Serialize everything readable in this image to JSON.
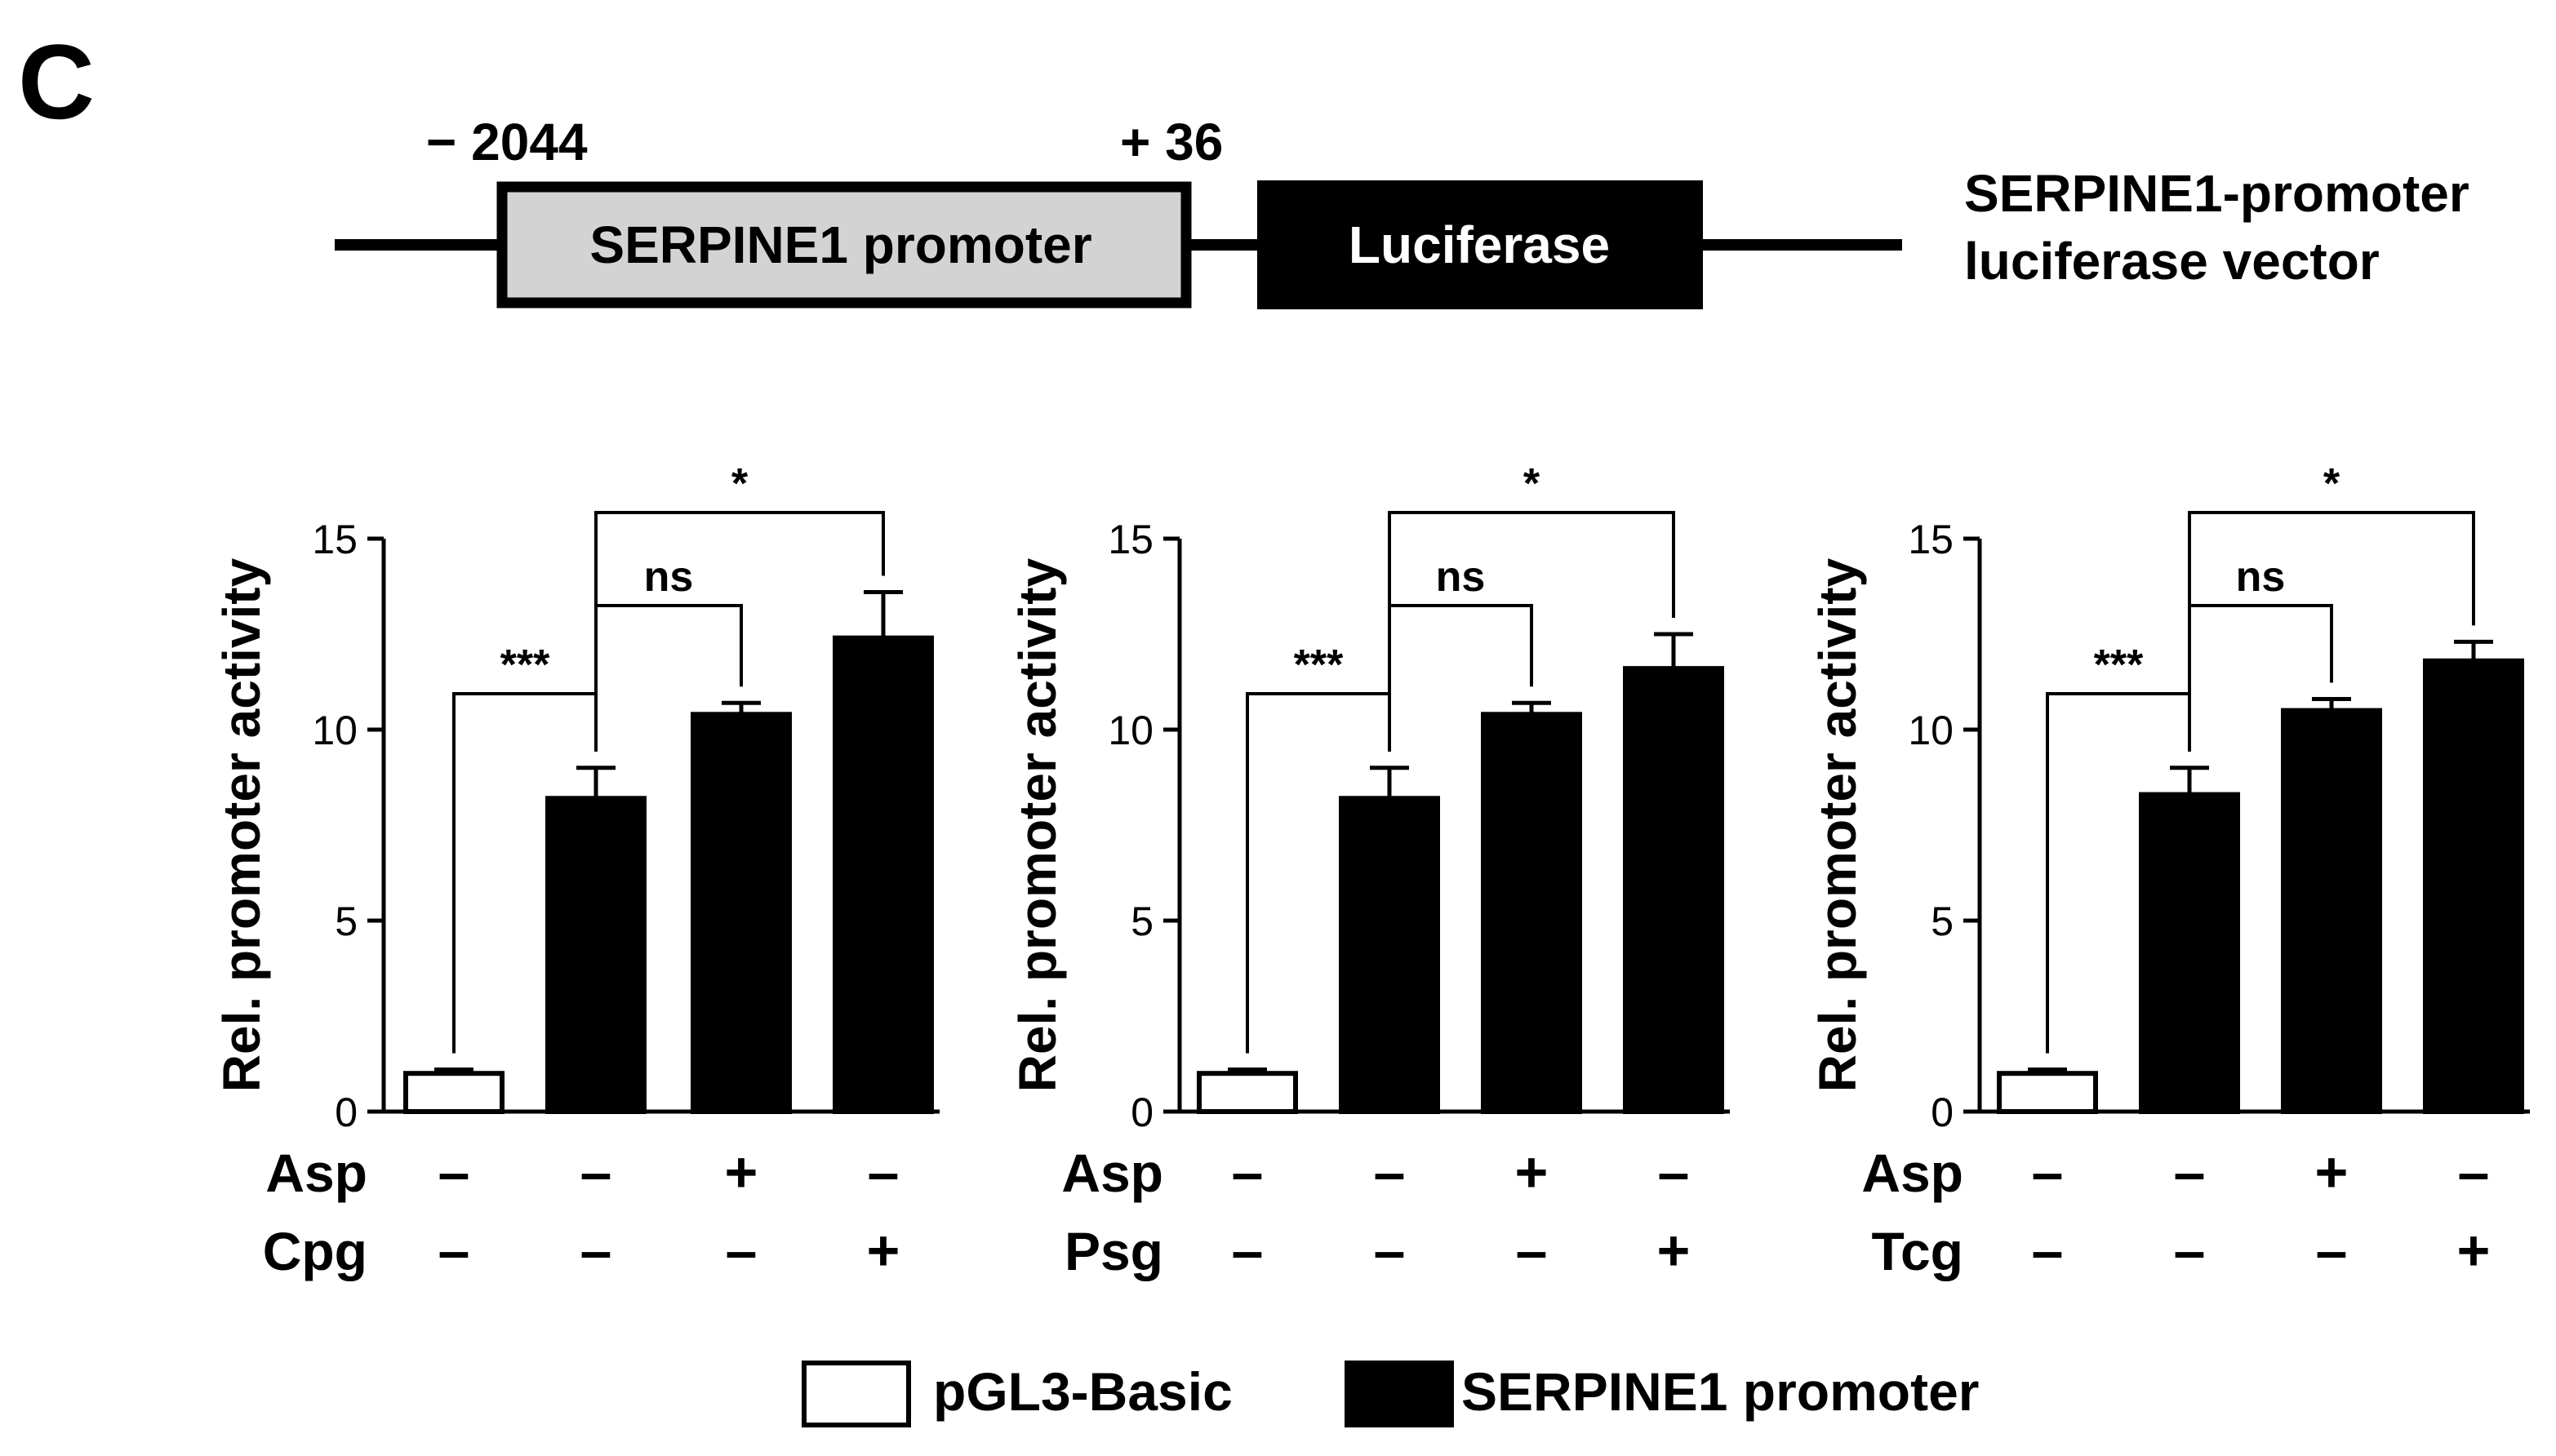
{
  "panel_label": "C",
  "construct": {
    "start_label": "− 2044",
    "end_label": "+ 36",
    "promoter_label": "SERPINE1 promoter",
    "reporter_label": "Luciferase",
    "caption_line1": "SERPINE1-promoter",
    "caption_line2": "luciferase vector",
    "promoter_fill": "#d3d3d3",
    "reporter_fill": "#000000"
  },
  "legend": {
    "items": [
      {
        "label": "pGL3-Basic",
        "color": "#ffffff"
      },
      {
        "label": "SERPINE1 promoter",
        "color": "#000000"
      }
    ]
  },
  "chart_data": [
    {
      "type": "bar",
      "ylabel": "Rel. promoter activity",
      "ylim": [
        0,
        15
      ],
      "yticks": [
        0,
        5,
        10,
        15
      ],
      "values": [
        1.0,
        8.2,
        10.4,
        12.4
      ],
      "errors": [
        0.1,
        0.8,
        0.3,
        1.2
      ],
      "colors": [
        "#ffffff",
        "#000000",
        "#000000",
        "#000000"
      ],
      "conditions": [
        {
          "label": "Asp",
          "signs": [
            "–",
            "–",
            "+",
            "–"
          ]
        },
        {
          "label": "Cpg",
          "signs": [
            "–",
            "–",
            "–",
            "+"
          ]
        }
      ],
      "comparisons": [
        {
          "from": 0,
          "to": 1,
          "label": "***"
        },
        {
          "from": 1,
          "to": 2,
          "label": "ns"
        },
        {
          "from": 1,
          "to": 3,
          "label": "*"
        }
      ]
    },
    {
      "type": "bar",
      "ylabel": "Rel. promoter activity",
      "ylim": [
        0,
        15
      ],
      "yticks": [
        0,
        5,
        10,
        15
      ],
      "values": [
        1.0,
        8.2,
        10.4,
        11.6
      ],
      "errors": [
        0.1,
        0.8,
        0.3,
        0.9
      ],
      "colors": [
        "#ffffff",
        "#000000",
        "#000000",
        "#000000"
      ],
      "conditions": [
        {
          "label": "Asp",
          "signs": [
            "–",
            "–",
            "+",
            "–"
          ]
        },
        {
          "label": "Psg",
          "signs": [
            "–",
            "–",
            "–",
            "+"
          ]
        }
      ],
      "comparisons": [
        {
          "from": 0,
          "to": 1,
          "label": "***"
        },
        {
          "from": 1,
          "to": 2,
          "label": "ns"
        },
        {
          "from": 1,
          "to": 3,
          "label": "*"
        }
      ]
    },
    {
      "type": "bar",
      "ylabel": "Rel. promoter activity",
      "ylim": [
        0,
        15
      ],
      "yticks": [
        0,
        5,
        10,
        15
      ],
      "values": [
        1.0,
        8.3,
        10.5,
        11.8
      ],
      "errors": [
        0.1,
        0.7,
        0.3,
        0.5
      ],
      "colors": [
        "#ffffff",
        "#000000",
        "#000000",
        "#000000"
      ],
      "conditions": [
        {
          "label": "Asp",
          "signs": [
            "–",
            "–",
            "+",
            "–"
          ]
        },
        {
          "label": "Tcg",
          "signs": [
            "–",
            "–",
            "–",
            "+"
          ]
        }
      ],
      "comparisons": [
        {
          "from": 0,
          "to": 1,
          "label": "***"
        },
        {
          "from": 1,
          "to": 2,
          "label": "ns"
        },
        {
          "from": 1,
          "to": 3,
          "label": "*"
        }
      ]
    }
  ]
}
